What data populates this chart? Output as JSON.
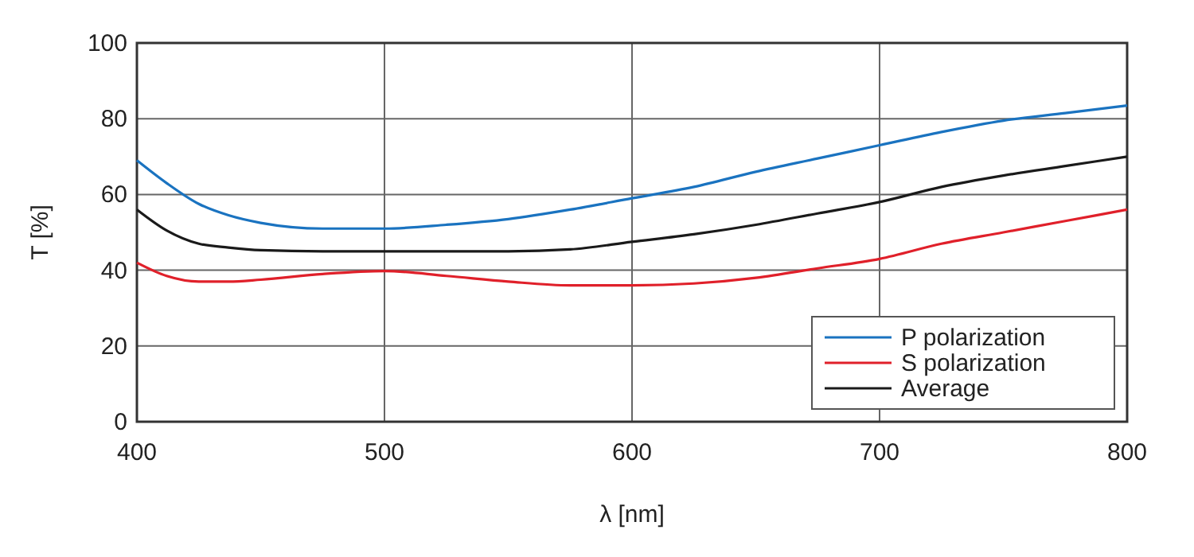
{
  "chart_data": {
    "type": "line",
    "xlabel": "λ  [nm]",
    "ylabel": "T [%]",
    "x": [
      400,
      412,
      425,
      437,
      450,
      475,
      500,
      525,
      550,
      575,
      600,
      625,
      650,
      675,
      700,
      725,
      750,
      775,
      800
    ],
    "series": [
      {
        "name": "P polarization",
        "color": "#1a73c0",
        "values": [
          69,
          63,
          57.5,
          54.5,
          52.5,
          51,
          51,
          52,
          53.5,
          56,
          59,
          62,
          66,
          69.5,
          73,
          76.5,
          79.5,
          81.5,
          83.5
        ]
      },
      {
        "name": "S polarization",
        "color": "#e0202a",
        "values": [
          42,
          38.5,
          37,
          37,
          37.5,
          39,
          39.8,
          38.5,
          37,
          36,
          36,
          36.5,
          38,
          40.5,
          43,
          47,
          50,
          53,
          56
        ]
      },
      {
        "name": "Average",
        "color": "#1a1a1a",
        "values": [
          56,
          50.5,
          47,
          46,
          45.3,
          45,
          45,
          45,
          45,
          45.5,
          47.5,
          49.5,
          52,
          55,
          58,
          62,
          65,
          67.5,
          70
        ]
      }
    ],
    "xlim": [
      400,
      800
    ],
    "ylim": [
      0,
      100
    ],
    "xticks": [
      400,
      500,
      600,
      700,
      800
    ],
    "yticks": [
      0,
      20,
      40,
      60,
      80,
      100
    ],
    "grid": true,
    "legend": "bottom right",
    "marker": "none",
    "line_style": "solid"
  }
}
